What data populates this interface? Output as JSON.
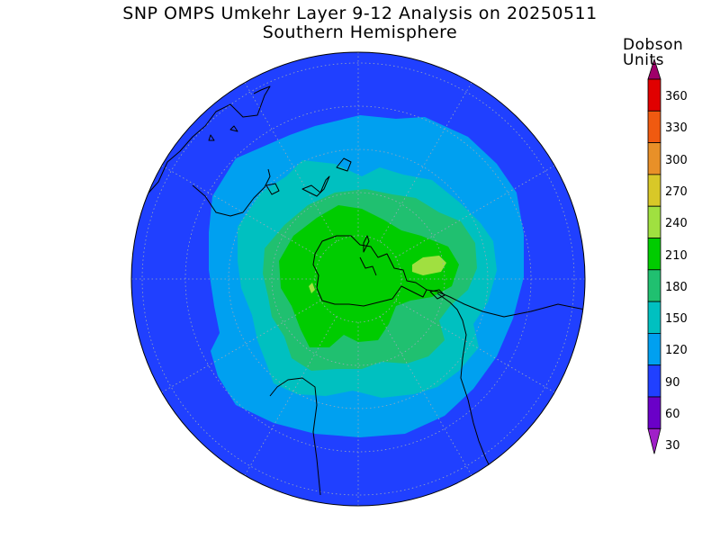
{
  "header": {
    "title": "SNP OMPS Umkehr Layer 9-12 Analysis on 20250511",
    "subtitle": "Southern Hemisphere"
  },
  "colorbar": {
    "units_line1": "Dobson",
    "units_line2": "Units",
    "ticks": [
      "360",
      "330",
      "300",
      "270",
      "240",
      "210",
      "180",
      "150",
      "120",
      "90",
      "60",
      "30"
    ],
    "colors": [
      "#a0006a",
      "#e00000",
      "#f05a10",
      "#e89028",
      "#d8c828",
      "#a0e040",
      "#00cc00",
      "#20c070",
      "#00c0c0",
      "#00a0f0",
      "#2040ff",
      "#6a00c8",
      "#a020c8"
    ]
  },
  "map": {
    "ocean_background_color": "#2040ff",
    "ozone_levels": [
      {
        "min": 60,
        "max": 90,
        "color": "#2040ff"
      },
      {
        "min": 90,
        "max": 120,
        "color": "#00a0f0"
      },
      {
        "min": 120,
        "max": 150,
        "color": "#00c0c0"
      },
      {
        "min": 150,
        "max": 180,
        "color": "#20c070"
      },
      {
        "min": 180,
        "max": 210,
        "color": "#00cc00"
      },
      {
        "min": 210,
        "max": 240,
        "color": "#a0e040"
      }
    ]
  }
}
